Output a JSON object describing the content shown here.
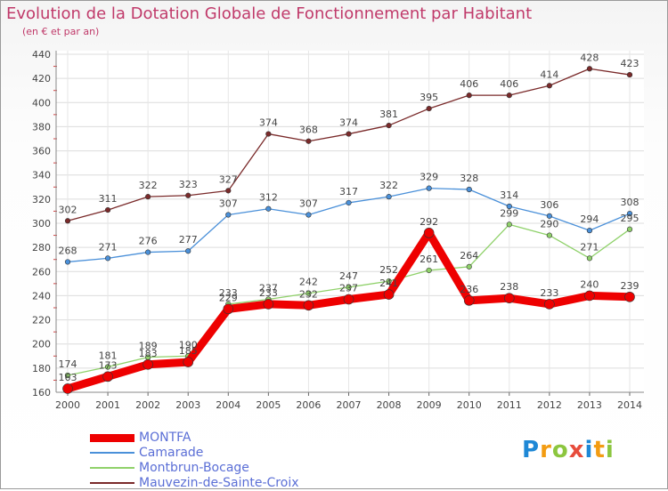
{
  "header": {
    "title": "Evolution de la Dotation Globale de Fonctionnement par Habitant",
    "subtitle": "(en € et par an)"
  },
  "logo": {
    "text": "Proxiti",
    "letters": [
      {
        "ch": "P",
        "color": "#1e88d6"
      },
      {
        "ch": "r",
        "color": "#f39c12"
      },
      {
        "ch": "o",
        "color": "#8cc63f"
      },
      {
        "ch": "x",
        "color": "#e74c3c"
      },
      {
        "ch": "i",
        "color": "#1e88d6"
      },
      {
        "ch": "t",
        "color": "#f39c12"
      },
      {
        "ch": "i",
        "color": "#8cc63f"
      }
    ]
  },
  "chart_data": {
    "type": "line",
    "categories": [
      "2000",
      "2001",
      "2002",
      "2003",
      "2004",
      "2005",
      "2006",
      "2007",
      "2008",
      "2009",
      "2010",
      "2011",
      "2012",
      "2013",
      "2014"
    ],
    "ylim": [
      160,
      440
    ],
    "yticks": [
      160,
      180,
      200,
      220,
      240,
      260,
      280,
      300,
      320,
      340,
      360,
      380,
      400,
      420,
      440
    ],
    "grid": true,
    "legend_position": "bottom-left",
    "series": [
      {
        "name": "Mauvezin-de-Sainte-Croix",
        "color": "#7a2a2a",
        "width": 1.3,
        "marker": 2.8,
        "values": [
          302,
          311,
          322,
          323,
          327,
          374,
          368,
          374,
          381,
          395,
          406,
          406,
          414,
          428,
          423
        ],
        "labels": [
          "302",
          "311",
          "322",
          "323",
          "327",
          "374",
          "368",
          "374",
          "381",
          "395",
          "406",
          "406",
          "414",
          "428",
          "423"
        ]
      },
      {
        "name": "Camarade",
        "color": "#4a90d9",
        "width": 1.3,
        "marker": 2.8,
        "values": [
          268,
          271,
          276,
          277,
          307,
          312,
          307,
          317,
          322,
          329,
          328,
          314,
          306,
          294,
          308
        ],
        "labels": [
          "268",
          "271",
          "276",
          "277",
          "307",
          "312",
          "307",
          "317",
          "322",
          "329",
          "328",
          "314",
          "306",
          "294",
          "308"
        ]
      },
      {
        "name": "Montbrun-Bocage",
        "color": "#8fd16a",
        "width": 1.3,
        "marker": 2.8,
        "values": [
          174,
          181,
          189,
          190,
          233,
          237,
          242,
          247,
          252,
          261,
          264,
          299,
          290,
          271,
          295
        ],
        "labels": [
          "174",
          "181",
          "189",
          "190",
          "233",
          "237",
          "242",
          "247",
          "252",
          "261",
          "264",
          "299",
          "290",
          "271",
          "295"
        ]
      },
      {
        "name": "MONTFA",
        "color": "#ee0000",
        "width": 9,
        "marker": 5.5,
        "values": [
          163,
          173,
          183,
          185,
          229,
          233,
          232,
          237,
          241,
          292,
          236,
          238,
          233,
          240,
          239
        ],
        "labels": [
          "163",
          "173",
          "183",
          "185",
          "229",
          "233",
          "232",
          "237",
          "241",
          "292",
          "236",
          "238",
          "233",
          "240",
          "239"
        ]
      }
    ]
  }
}
